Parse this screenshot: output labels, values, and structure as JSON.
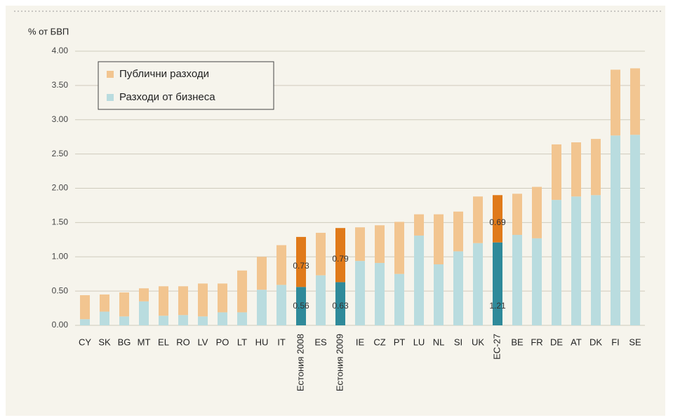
{
  "chart_data": {
    "type": "stacked_bar",
    "y_label": "% от БВП",
    "categories": [
      "CY",
      "SK",
      "BG",
      "MT",
      "EL",
      "RO",
      "LV",
      "PO",
      "LT",
      "HU",
      "IT",
      "Естония 2008",
      "ES",
      "Естония 2009",
      "IE",
      "CZ",
      "PT",
      "LU",
      "NL",
      "SI",
      "UK",
      "ЕС-27",
      "BE",
      "FR",
      "DE",
      "AT",
      "DK",
      "FI",
      "SE"
    ],
    "series": [
      {
        "name": "Разходи от бизнеса",
        "color": "#b9dcdf",
        "highlight_color": "#2f8a9a",
        "values": [
          0.09,
          0.2,
          0.13,
          0.35,
          0.14,
          0.15,
          0.13,
          0.19,
          0.19,
          0.52,
          0.59,
          0.56,
          0.73,
          0.63,
          0.94,
          0.91,
          0.75,
          1.31,
          0.89,
          1.08,
          1.2,
          1.21,
          1.32,
          1.27,
          1.83,
          1.88,
          1.9,
          2.77,
          2.78
        ],
        "value_labels": [
          null,
          null,
          null,
          null,
          null,
          null,
          null,
          null,
          null,
          null,
          null,
          "0.56",
          null,
          "0.63",
          null,
          null,
          null,
          null,
          null,
          null,
          null,
          "1.21",
          null,
          null,
          null,
          null,
          null,
          null,
          null
        ]
      },
      {
        "name": "Публични разходи",
        "color": "#f2c590",
        "highlight_color": "#e07a1a",
        "values": [
          0.35,
          0.25,
          0.35,
          0.19,
          0.43,
          0.42,
          0.48,
          0.42,
          0.61,
          0.48,
          0.58,
          0.73,
          0.62,
          0.79,
          0.49,
          0.55,
          0.76,
          0.31,
          0.73,
          0.58,
          0.68,
          0.69,
          0.6,
          0.75,
          0.81,
          0.79,
          0.82,
          0.96,
          0.97
        ],
        "value_labels": [
          null,
          null,
          null,
          null,
          null,
          null,
          null,
          null,
          null,
          null,
          null,
          "0.73",
          null,
          "0.79",
          null,
          null,
          null,
          null,
          null,
          null,
          null,
          "0.69",
          null,
          null,
          null,
          null,
          null,
          null,
          null
        ]
      }
    ],
    "highlight": [
      11,
      13,
      21
    ],
    "ylim": [
      0,
      4
    ],
    "yticks": [
      {
        "value": 0,
        "label": "0.00"
      },
      {
        "value": 0.5,
        "label": "0.50"
      },
      {
        "value": 1,
        "label": "1.00"
      },
      {
        "value": 1.5,
        "label": "1.50"
      },
      {
        "value": 2,
        "label": "2.00"
      },
      {
        "value": 2.5,
        "label": "2.50"
      },
      {
        "value": 3,
        "label": "3.00"
      },
      {
        "value": 3.5,
        "label": "3.50"
      },
      {
        "value": 4,
        "label": "4.00"
      }
    ],
    "grid": true
  }
}
